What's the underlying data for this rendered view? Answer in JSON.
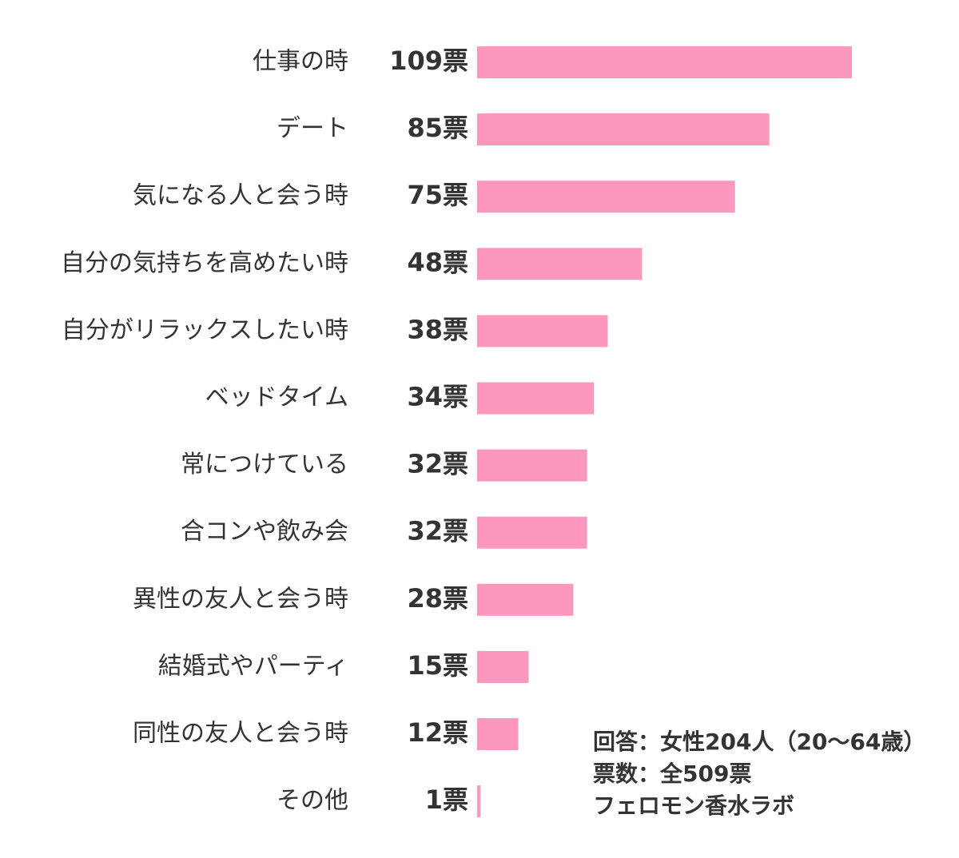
{
  "chart_data": {
    "type": "hbar",
    "categories": [
      "仕事の時",
      "デート",
      "気になる人と会う時",
      "自分の気持ちを高めたい時",
      "自分がリラックスしたい時",
      "ベッドタイム",
      "常につけている",
      "合コンや飲み会",
      "異性の友人と会う時",
      "結婚式やパーティ",
      "同性の友人と会う時",
      "その他"
    ],
    "values": [
      109,
      85,
      75,
      48,
      38,
      34,
      32,
      32,
      28,
      15,
      12,
      1
    ],
    "value_labels": [
      "109票",
      "85票",
      "75票",
      "48票",
      "38票",
      "34票",
      "32票",
      "32票",
      "28票",
      "15票",
      "12票",
      "1票"
    ],
    "color": "#fd97bd",
    "notes": [
      "回答：女性204人（20～64歳）",
      "票数：全509票",
      "フェロモン香水ラボ"
    ]
  }
}
